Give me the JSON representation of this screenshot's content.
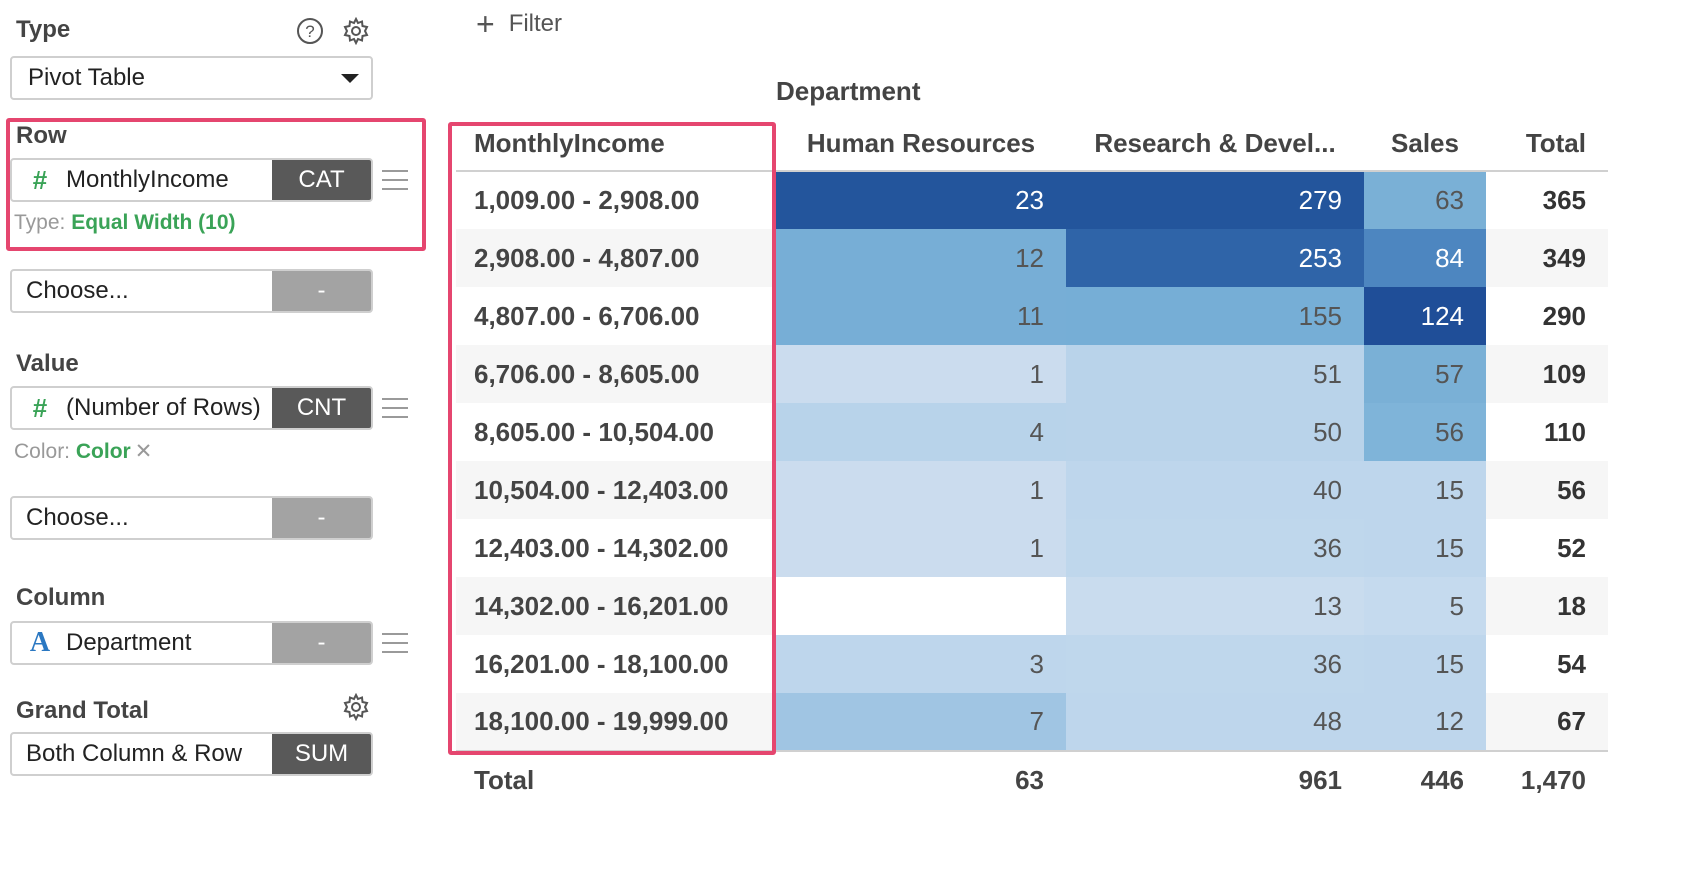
{
  "panel": {
    "type": {
      "label": "Type",
      "value": "Pivot Table"
    },
    "row": {
      "label": "Row",
      "field": "MonthlyIncome",
      "agg": "CAT",
      "sub_prefix": "Type:",
      "sub_value": "Equal Width (10)",
      "choose": "Choose...",
      "choose_agg": "-"
    },
    "value": {
      "label": "Value",
      "field": "(Number of Rows)",
      "agg": "CNT",
      "sub_prefix": "Color:",
      "sub_value": "Color",
      "choose": "Choose...",
      "choose_agg": "-"
    },
    "column": {
      "label": "Column",
      "field": "Department",
      "agg": "-"
    },
    "grand_total": {
      "label": "Grand Total",
      "value": "Both Column & Row",
      "agg": "SUM"
    }
  },
  "filter": {
    "label": "Filter"
  },
  "table": {
    "column_group": "Department",
    "row_header": "MonthlyIncome",
    "columns": [
      "Human Resources",
      "Research & Devel...",
      "Sales",
      "Total"
    ],
    "rows": [
      {
        "label": "1,009.00 - 2,908.00",
        "cells": [
          "23",
          "279",
          "63"
        ],
        "total": "365"
      },
      {
        "label": "2,908.00 - 4,807.00",
        "cells": [
          "12",
          "253",
          "84"
        ],
        "total": "349"
      },
      {
        "label": "4,807.00 - 6,706.00",
        "cells": [
          "11",
          "155",
          "124"
        ],
        "total": "290"
      },
      {
        "label": "6,706.00 - 8,605.00",
        "cells": [
          "1",
          "51",
          "57"
        ],
        "total": "109"
      },
      {
        "label": "8,605.00 - 10,504.00",
        "cells": [
          "4",
          "50",
          "56"
        ],
        "total": "110"
      },
      {
        "label": "10,504.00 - 12,403.00",
        "cells": [
          "1",
          "40",
          "15"
        ],
        "total": "56"
      },
      {
        "label": "12,403.00 - 14,302.00",
        "cells": [
          "1",
          "36",
          "15"
        ],
        "total": "52"
      },
      {
        "label": "14,302.00 - 16,201.00",
        "cells": [
          "",
          "13",
          "5"
        ],
        "total": "18"
      },
      {
        "label": "16,201.00 - 18,100.00",
        "cells": [
          "3",
          "36",
          "15"
        ],
        "total": "54"
      },
      {
        "label": "18,100.00 - 19,999.00",
        "cells": [
          "7",
          "48",
          "12"
        ],
        "total": "67"
      }
    ],
    "total_row": {
      "label": "Total",
      "cells": [
        "63",
        "961",
        "446"
      ],
      "total": "1,470"
    },
    "colors": {
      "1,009.00 - 2,908.00": [
        "#23559c",
        "#23559c",
        "#7ab0d6"
      ],
      "2,908.00 - 4,807.00": [
        "#77aed6",
        "#2f64a8",
        "#4d86c0"
      ],
      "4,807.00 - 6,706.00": [
        "#77aed6",
        "#76aed6",
        "#1f4e98"
      ],
      "6,706.00 - 8,605.00": [
        "#cbdcee",
        "#b9d3ea",
        "#7ab0d6"
      ],
      "8,605.00 - 10,504.00": [
        "#b8d3ea",
        "#b9d3ea",
        "#7fb4d9"
      ],
      "10,504.00 - 12,403.00": [
        "#cbdcee",
        "#bed6ec",
        "#bed6ec"
      ],
      "12,403.00 - 14,302.00": [
        "#cbdcee",
        "#bfd7ec",
        "#bed6ec"
      ],
      "14,302.00 - 16,201.00": [
        "#ffffff",
        "#c9dcee",
        "#c5daee"
      ],
      "16,201.00 - 18,100.00": [
        "#bed6ec",
        "#bfd7ec",
        "#bed6ec"
      ],
      "18,100.00 - 19,999.00": [
        "#a0c5e3",
        "#bed6ec",
        "#bed6ec"
      ]
    },
    "dark_text_on": [
      "#23559c",
      "#2f64a8",
      "#4d86c0",
      "#1f4e98"
    ]
  }
}
